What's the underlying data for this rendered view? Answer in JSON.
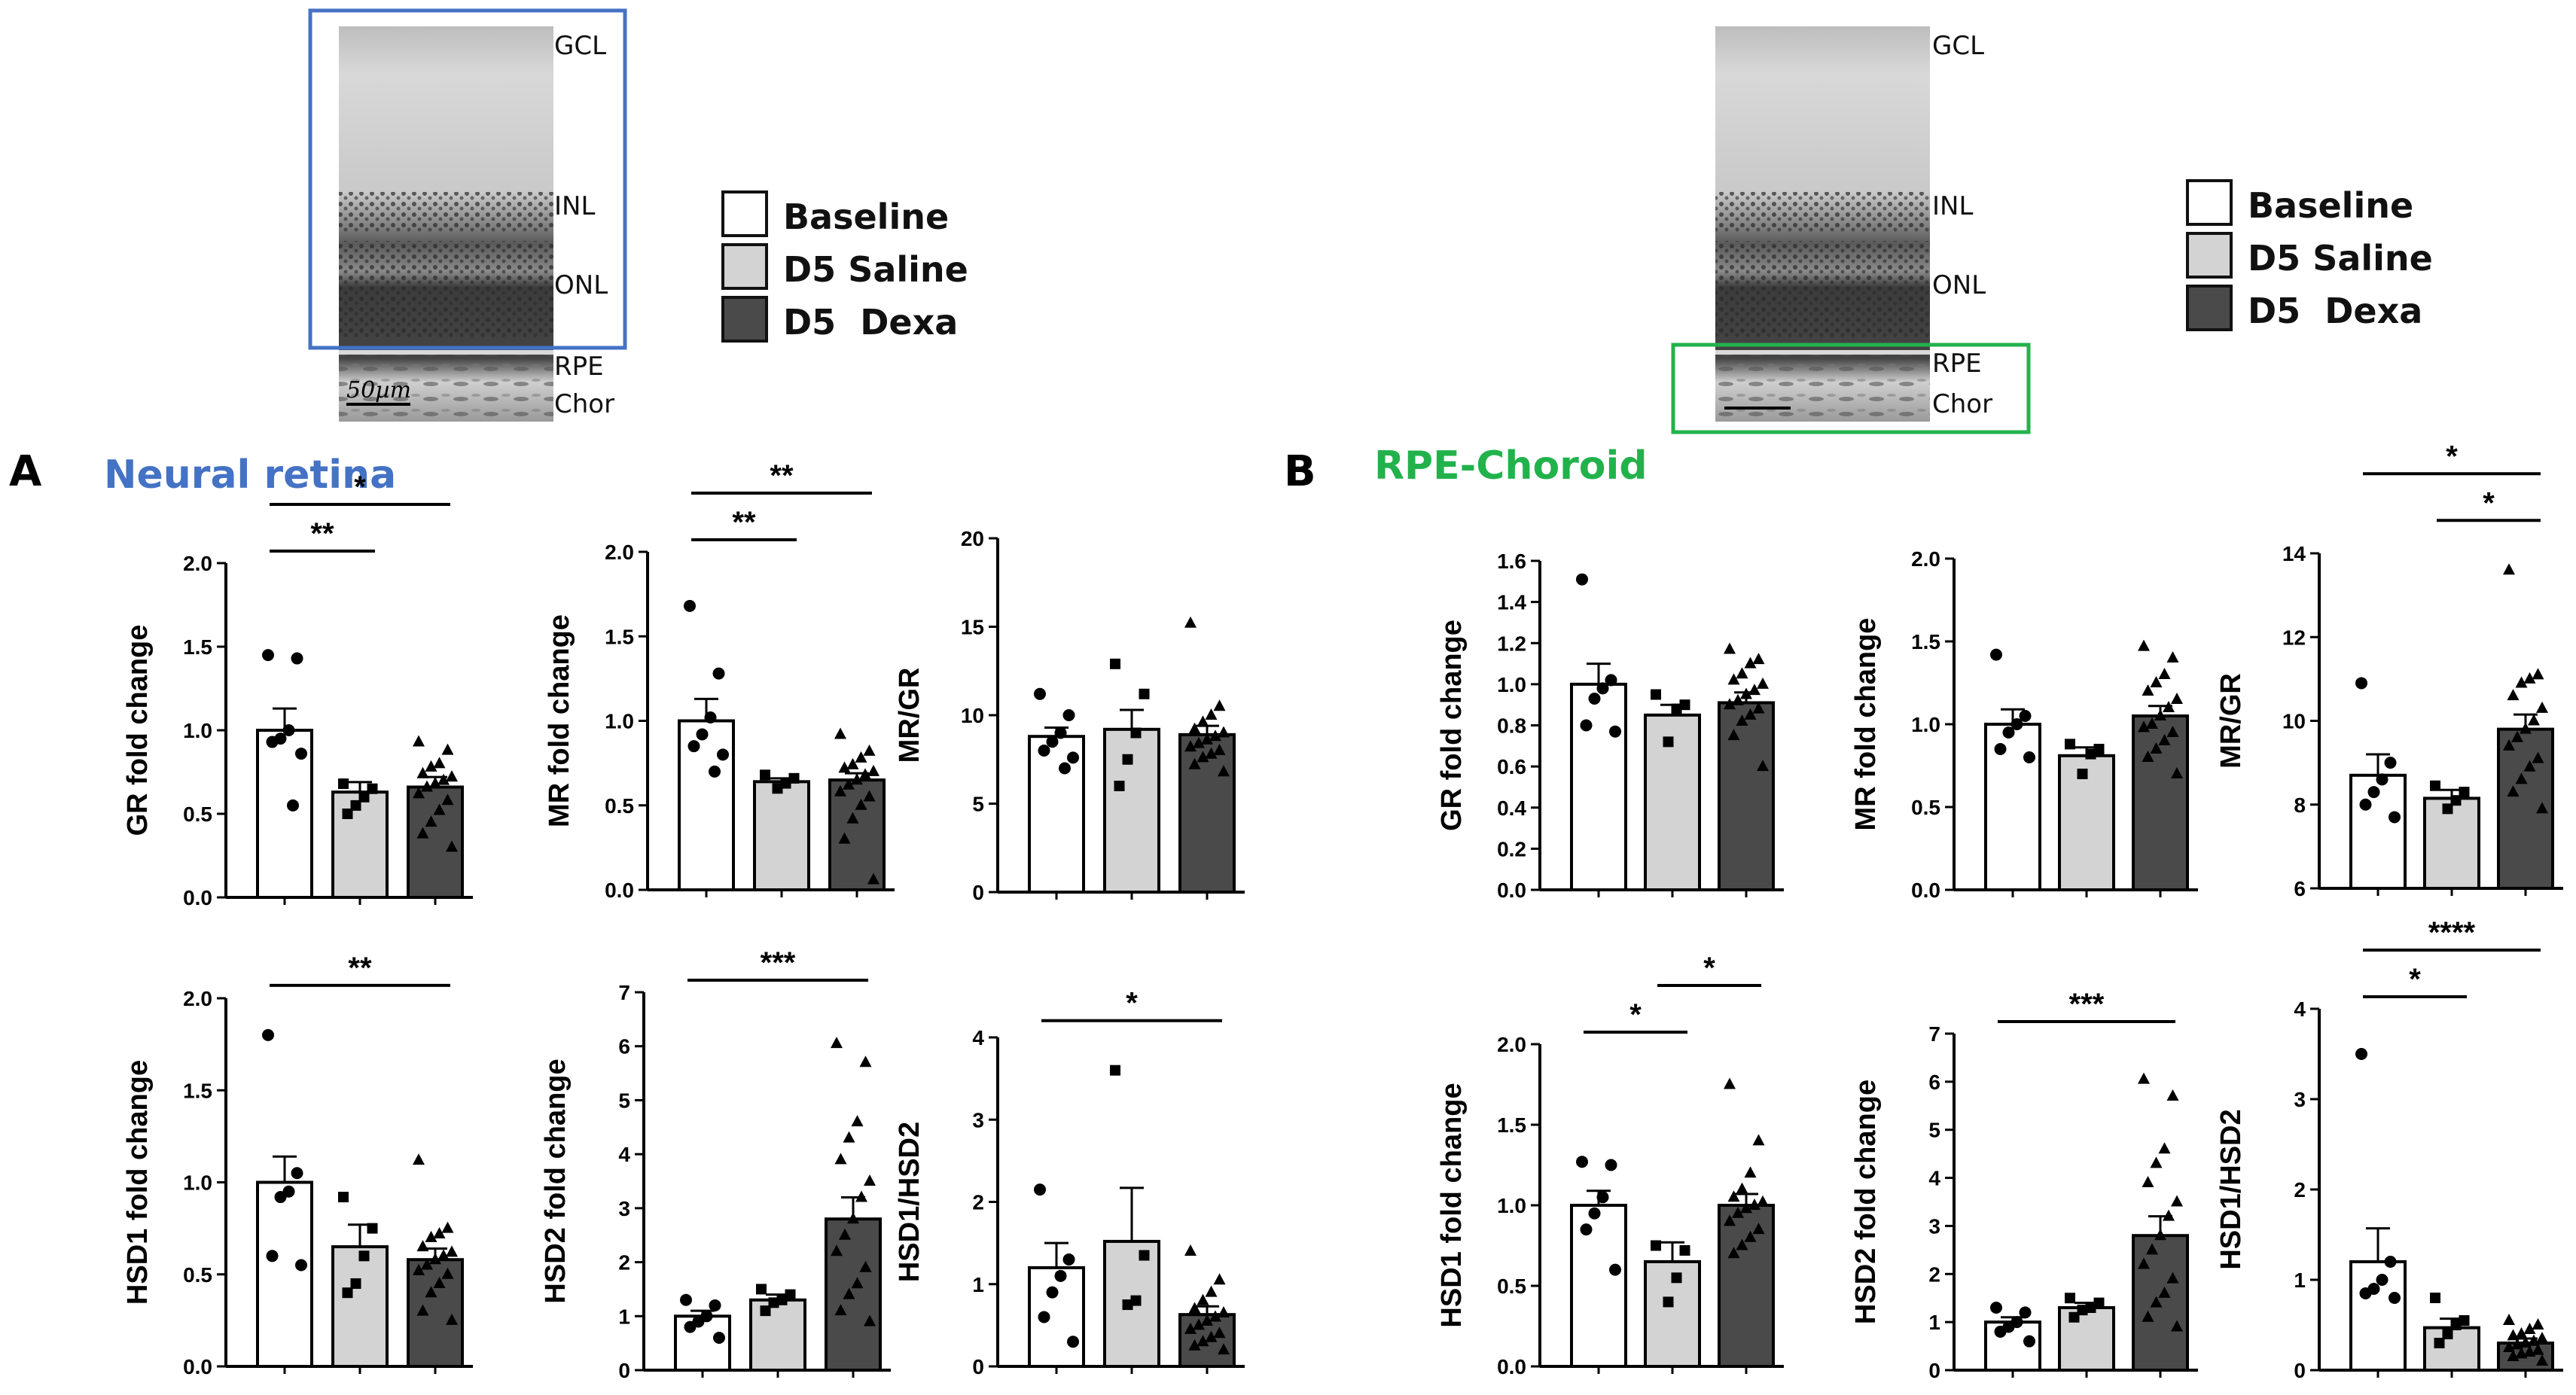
{
  "micrographs": {
    "left": {
      "layers": [
        "GCL",
        "INL",
        "ONL",
        "RPE",
        "Chor"
      ],
      "scale_label": "50µm"
    },
    "right": {
      "layers": [
        "GCL",
        "INL",
        "ONL",
        "RPE",
        "Chor"
      ]
    }
  },
  "legend": {
    "items": [
      {
        "label": "Baseline",
        "color": "#ffffff"
      },
      {
        "label": "D5 Saline",
        "color": "#d3d3d3"
      },
      {
        "label": "D5  Dexa",
        "color": "#4a4a4a"
      }
    ]
  },
  "panels": {
    "A": {
      "letter": "A",
      "title": "Neural retina",
      "title_color": "#4472c4"
    },
    "B": {
      "letter": "B",
      "title": "RPE-Choroid",
      "title_color": "#22b24c"
    }
  },
  "colors": {
    "baseline": "#ffffff",
    "saline": "#d3d3d3",
    "dexa": "#4a4a4a",
    "box_blue": "#4472c4",
    "box_green": "#22b24c"
  },
  "chart_data": [
    {
      "id": "A-GR",
      "type": "bar",
      "panel": "A",
      "ylabel": "GR fold change",
      "ylim": [
        0,
        2.0
      ],
      "yticks": [
        "0.0",
        "0.5",
        "1.0",
        "1.5",
        "2.0"
      ],
      "categories": [
        "Baseline",
        "D5 Saline",
        "D5 Dexa"
      ],
      "values": [
        1.0,
        0.63,
        0.66
      ],
      "sem": [
        0.13,
        0.06,
        0.06
      ],
      "points": [
        [
          1.45,
          1.43,
          1.0,
          0.95,
          0.93,
          0.86,
          0.55
        ],
        [
          0.68,
          0.65,
          0.6,
          0.55,
          0.5
        ],
        [
          0.93,
          0.88,
          0.8,
          0.78,
          0.74,
          0.72,
          0.7,
          0.68,
          0.66,
          0.62,
          0.58,
          0.52,
          0.45,
          0.38,
          0.3
        ]
      ],
      "brackets": [
        {
          "from": 0,
          "to": 1,
          "label": "**"
        },
        {
          "from": 0,
          "to": 2,
          "label": "*"
        }
      ]
    },
    {
      "id": "A-MR",
      "type": "bar",
      "panel": "A",
      "ylabel": "MR fold change",
      "ylim": [
        0,
        2.0
      ],
      "yticks": [
        "0.0",
        "0.5",
        "1.0",
        "1.5",
        "2.0"
      ],
      "categories": [
        "Baseline",
        "D5 Saline",
        "D5 Dexa"
      ],
      "values": [
        1.0,
        0.64,
        0.65
      ],
      "sem": [
        0.13,
        0.02,
        0.04
      ],
      "points": [
        [
          1.68,
          1.28,
          1.02,
          0.92,
          0.85,
          0.8,
          0.7
        ],
        [
          0.68,
          0.66,
          0.63,
          0.6
        ],
        [
          0.92,
          0.82,
          0.78,
          0.74,
          0.72,
          0.7,
          0.68,
          0.65,
          0.62,
          0.58,
          0.55,
          0.5,
          0.42,
          0.3,
          0.06
        ]
      ],
      "brackets": [
        {
          "from": 0,
          "to": 1,
          "label": "**"
        },
        {
          "from": 0,
          "to": 2,
          "label": "**"
        }
      ]
    },
    {
      "id": "A-MRGR",
      "type": "bar",
      "panel": "A",
      "ylabel": "MR/GR",
      "ylim": [
        0,
        20
      ],
      "yticks": [
        "0",
        "5",
        "10",
        "15",
        "20"
      ],
      "categories": [
        "Baseline",
        "D5 Saline",
        "D5 Dexa"
      ],
      "values": [
        8.8,
        9.2,
        8.9
      ],
      "sem": [
        0.5,
        1.1,
        0.5
      ],
      "points": [
        [
          11.2,
          10.0,
          9.0,
          8.5,
          8.0,
          7.6,
          7.0
        ],
        [
          12.9,
          11.2,
          9.0,
          7.5,
          6.0
        ],
        [
          15.2,
          10.5,
          10.0,
          9.6,
          9.2,
          9.0,
          8.8,
          8.6,
          8.4,
          8.2,
          8.0,
          7.8,
          7.6,
          7.2,
          6.8
        ]
      ],
      "brackets": []
    },
    {
      "id": "A-HSD1",
      "type": "bar",
      "panel": "A",
      "ylabel": "HSD1 fold change",
      "ylim": [
        0,
        2.0
      ],
      "yticks": [
        "0.0",
        "0.5",
        "1.0",
        "1.5",
        "2.0"
      ],
      "categories": [
        "Baseline",
        "D5 Saline",
        "D5 Dexa"
      ],
      "values": [
        1.0,
        0.65,
        0.58
      ],
      "sem": [
        0.14,
        0.12,
        0.06
      ],
      "points": [
        [
          1.8,
          1.05,
          0.95,
          0.92,
          0.6,
          0.55
        ],
        [
          0.92,
          0.75,
          0.6,
          0.45,
          0.4
        ],
        [
          1.12,
          0.75,
          0.72,
          0.7,
          0.65,
          0.62,
          0.6,
          0.58,
          0.55,
          0.52,
          0.5,
          0.45,
          0.4,
          0.3,
          0.25
        ]
      ],
      "brackets": [
        {
          "from": 0,
          "to": 2,
          "label": "**"
        }
      ]
    },
    {
      "id": "A-HSD2",
      "type": "bar",
      "panel": "A",
      "ylabel": "HSD2 fold change",
      "ylim": [
        0,
        7
      ],
      "yticks": [
        "0",
        "1",
        "2",
        "3",
        "4",
        "5",
        "6",
        "7"
      ],
      "categories": [
        "Baseline",
        "D5 Saline",
        "D5 Dexa"
      ],
      "values": [
        1.0,
        1.3,
        2.8
      ],
      "sem": [
        0.1,
        0.1,
        0.4
      ],
      "points": [
        [
          1.3,
          1.2,
          1.0,
          0.9,
          0.8,
          0.6
        ],
        [
          1.5,
          1.4,
          1.3,
          1.25,
          1.1
        ],
        [
          6.05,
          5.7,
          4.6,
          4.3,
          3.9,
          3.5,
          3.2,
          2.8,
          2.5,
          2.2,
          1.9,
          1.6,
          1.4,
          1.1,
          0.9
        ]
      ],
      "brackets": [
        {
          "from": 0,
          "to": 2,
          "label": "***"
        }
      ]
    },
    {
      "id": "A-HSD1HSD2",
      "type": "bar",
      "panel": "A",
      "ylabel": "HSD1/HSD2",
      "ylim": [
        0,
        4
      ],
      "yticks": [
        "0",
        "1",
        "2",
        "3",
        "4"
      ],
      "categories": [
        "Baseline",
        "D5 Saline",
        "D5 Dexa"
      ],
      "values": [
        1.2,
        1.52,
        0.63
      ],
      "sem": [
        0.3,
        0.65,
        0.1
      ],
      "points": [
        [
          2.15,
          1.3,
          1.1,
          0.9,
          0.6,
          0.3
        ],
        [
          3.6,
          1.35,
          0.8,
          0.75
        ],
        [
          1.4,
          1.05,
          0.9,
          0.8,
          0.7,
          0.65,
          0.6,
          0.55,
          0.5,
          0.45,
          0.4,
          0.35,
          0.3,
          0.25,
          0.2
        ]
      ],
      "brackets": [
        {
          "from": 0,
          "to": 2,
          "label": "*"
        }
      ]
    },
    {
      "id": "B-GR",
      "type": "bar",
      "panel": "B",
      "ylabel": "GR fold change",
      "ylim": [
        0,
        1.6
      ],
      "yticks": [
        "0.0",
        "0.2",
        "0.4",
        "0.6",
        "0.8",
        "1.0",
        "1.2",
        "1.4",
        "1.6"
      ],
      "categories": [
        "Baseline",
        "D5 Saline",
        "D5 Dexa"
      ],
      "values": [
        1.0,
        0.85,
        0.91
      ],
      "sem": [
        0.1,
        0.05,
        0.05
      ],
      "points": [
        [
          1.51,
          1.02,
          0.98,
          0.93,
          0.8,
          0.77
        ],
        [
          0.95,
          0.9,
          0.88,
          0.72
        ],
        [
          1.17,
          1.12,
          1.1,
          1.05,
          1.02,
          1.0,
          0.97,
          0.95,
          0.92,
          0.9,
          0.88,
          0.85,
          0.82,
          0.75,
          0.6
        ]
      ],
      "brackets": []
    },
    {
      "id": "B-MR",
      "type": "bar",
      "panel": "B",
      "ylabel": "MR fold change",
      "ylim": [
        0,
        2.0
      ],
      "yticks": [
        "0.0",
        "0.5",
        "1.0",
        "1.5",
        "2.0"
      ],
      "categories": [
        "Baseline",
        "D5 Saline",
        "D5 Dexa"
      ],
      "values": [
        1.0,
        0.81,
        1.05
      ],
      "sem": [
        0.09,
        0.05,
        0.06
      ],
      "points": [
        [
          1.42,
          1.05,
          1.0,
          0.95,
          0.85,
          0.8
        ],
        [
          0.88,
          0.85,
          0.82,
          0.7
        ],
        [
          1.47,
          1.4,
          1.3,
          1.25,
          1.2,
          1.15,
          1.1,
          1.05,
          1.0,
          0.98,
          0.95,
          0.9,
          0.85,
          0.8,
          0.7
        ]
      ],
      "brackets": []
    },
    {
      "id": "B-MRGR",
      "type": "bar",
      "panel": "B",
      "ylabel": "MR/GR",
      "ylim": [
        6,
        14
      ],
      "yticks": [
        "6",
        "8",
        "10",
        "12",
        "14"
      ],
      "categories": [
        "Baseline",
        "D5 Saline",
        "D5 Dexa"
      ],
      "values": [
        8.7,
        8.15,
        9.8
      ],
      "sem": [
        0.5,
        0.2,
        0.35
      ],
      "points": [
        [
          10.9,
          9.0,
          8.6,
          8.3,
          8.0,
          7.7
        ],
        [
          8.45,
          8.3,
          8.1,
          7.9
        ],
        [
          13.6,
          11.1,
          11.0,
          10.9,
          10.6,
          10.3,
          10.0,
          9.8,
          9.6,
          9.4,
          9.1,
          8.9,
          8.6,
          8.3,
          7.9
        ]
      ],
      "brackets": [
        {
          "from": 1,
          "to": 2,
          "label": "*"
        },
        {
          "from": 0,
          "to": 2,
          "label": "*"
        }
      ]
    },
    {
      "id": "B-HSD1",
      "type": "bar",
      "panel": "B",
      "ylabel": "HSD1 fold change",
      "ylim": [
        0,
        2.0
      ],
      "yticks": [
        "0.0",
        "0.5",
        "1.0",
        "1.5",
        "2.0"
      ],
      "categories": [
        "Baseline",
        "D5 Saline",
        "D5 Dexa"
      ],
      "values": [
        1.0,
        0.65,
        1.0
      ],
      "sem": [
        0.09,
        0.12,
        0.07
      ],
      "points": [
        [
          1.27,
          1.25,
          1.05,
          0.95,
          0.85,
          0.6
        ],
        [
          0.75,
          0.72,
          0.55,
          0.4
        ],
        [
          1.75,
          1.4,
          1.2,
          1.1,
          1.05,
          1.02,
          1.0,
          0.98,
          0.95,
          0.9,
          0.85,
          0.8,
          0.75,
          0.7
        ]
      ],
      "brackets": [
        {
          "from": 0,
          "to": 1,
          "label": "*"
        },
        {
          "from": 1,
          "to": 2,
          "label": "*"
        }
      ]
    },
    {
      "id": "B-HSD2",
      "type": "bar",
      "panel": "B",
      "ylabel": "HSD2 fold change",
      "ylim": [
        0,
        7
      ],
      "yticks": [
        "0",
        "1",
        "2",
        "3",
        "4",
        "5",
        "6",
        "7"
      ],
      "categories": [
        "Baseline",
        "D5 Saline",
        "D5 Dexa"
      ],
      "values": [
        1.0,
        1.3,
        2.8
      ],
      "sem": [
        0.1,
        0.1,
        0.4
      ],
      "points": [
        [
          1.3,
          1.2,
          1.0,
          0.9,
          0.8,
          0.6
        ],
        [
          1.5,
          1.4,
          1.3,
          1.25,
          1.1
        ],
        [
          6.05,
          5.7,
          4.6,
          4.3,
          3.9,
          3.5,
          3.2,
          2.8,
          2.5,
          2.2,
          1.9,
          1.6,
          1.4,
          1.1,
          0.9
        ]
      ],
      "brackets": [
        {
          "from": 0,
          "to": 2,
          "label": "***"
        }
      ]
    },
    {
      "id": "B-HSD1HSD2",
      "type": "bar",
      "panel": "B",
      "ylabel": "HSD1/HSD2",
      "ylim": [
        0,
        4
      ],
      "yticks": [
        "0",
        "1",
        "2",
        "3",
        "4"
      ],
      "categories": [
        "Baseline",
        "D5 Saline",
        "D5 Dexa"
      ],
      "values": [
        1.2,
        0.47,
        0.3
      ],
      "sem": [
        0.37,
        0.1,
        0.05
      ],
      "points": [
        [
          3.5,
          1.2,
          1.0,
          0.9,
          0.85,
          0.8
        ],
        [
          0.8,
          0.55,
          0.5,
          0.4,
          0.3
        ],
        [
          0.55,
          0.5,
          0.45,
          0.4,
          0.38,
          0.35,
          0.32,
          0.3,
          0.28,
          0.25,
          0.22,
          0.2,
          0.18,
          0.15,
          0.1
        ]
      ],
      "brackets": [
        {
          "from": 0,
          "to": 1,
          "label": "*"
        },
        {
          "from": 0,
          "to": 2,
          "label": "****"
        }
      ]
    }
  ]
}
